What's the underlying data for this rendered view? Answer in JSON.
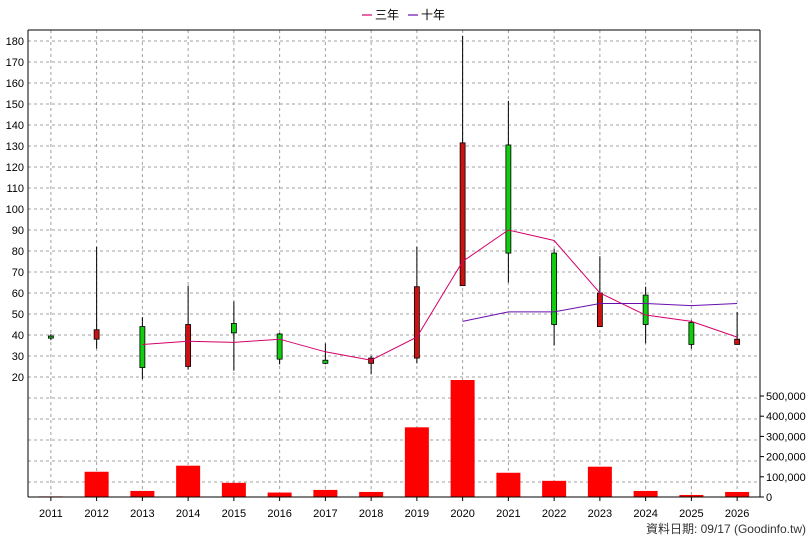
{
  "chart_data": {
    "type": "candlestick+line+bar",
    "legend": {
      "placement": "top-center",
      "items": [
        {
          "label": "三年",
          "color": "#d4006a"
        },
        {
          "label": "十年",
          "color": "#6a0dad"
        }
      ]
    },
    "years": [
      "2011",
      "2012",
      "2013",
      "2014",
      "2015",
      "2016",
      "2017",
      "2018",
      "2019",
      "2020",
      "2021",
      "2022",
      "2023",
      "2024",
      "2025",
      "2026"
    ],
    "price_axis": {
      "min": 20,
      "max": 180,
      "ticks": [
        20,
        30,
        40,
        50,
        60,
        70,
        80,
        90,
        100,
        110,
        120,
        130,
        140,
        150,
        160,
        170,
        180
      ]
    },
    "volume_axis": {
      "min": 0,
      "max": 550000,
      "ticks": [
        0,
        100000,
        200000,
        300000,
        400000,
        500000
      ],
      "tick_labels": [
        "0",
        "100,000",
        "200,000",
        "300,000",
        "400,000",
        "500,000"
      ]
    },
    "candles": [
      {
        "year": "2011",
        "open": 38.5,
        "high": 40.5,
        "low": 37.5,
        "close": 39.5
      },
      {
        "year": "2012",
        "open": 42.5,
        "high": 82,
        "low": 33.5,
        "close": 38
      },
      {
        "year": "2013",
        "open": 24.5,
        "high": 48.5,
        "low": 19,
        "close": 44
      },
      {
        "year": "2014",
        "open": 45,
        "high": 63.5,
        "low": 23.5,
        "close": 25
      },
      {
        "year": "2015",
        "open": 41,
        "high": 56,
        "low": 23,
        "close": 45.5
      },
      {
        "year": "2016",
        "open": 28.5,
        "high": 41,
        "low": 26,
        "close": 40.5
      },
      {
        "year": "2017",
        "open": 26.5,
        "high": 36,
        "low": 26,
        "close": 28
      },
      {
        "year": "2018",
        "open": 29,
        "high": 30,
        "low": 21.5,
        "close": 26.5
      },
      {
        "year": "2019",
        "open": 63,
        "high": 82,
        "low": 26.5,
        "close": 29
      },
      {
        "year": "2020",
        "open": 131.5,
        "high": 182.5,
        "low": 65,
        "close": 63.5
      },
      {
        "year": "2021",
        "open": 79,
        "high": 151.5,
        "low": 65,
        "close": 130.5
      },
      {
        "year": "2022",
        "open": 45,
        "high": 81,
        "low": 35,
        "close": 79
      },
      {
        "year": "2023",
        "open": 60,
        "high": 77.5,
        "low": 44,
        "close": 44
      },
      {
        "year": "2024",
        "open": 45,
        "high": 63,
        "low": 36,
        "close": 59
      },
      {
        "year": "2025",
        "open": 35.5,
        "high": 47,
        "low": 33.5,
        "close": 46
      },
      {
        "year": "2026",
        "open": 38,
        "high": 51,
        "low": 36,
        "close": 35.5
      }
    ],
    "volume": [
      {
        "year": "2011",
        "value": 3000
      },
      {
        "year": "2012",
        "value": 125000
      },
      {
        "year": "2013",
        "value": 30000
      },
      {
        "year": "2014",
        "value": 155000
      },
      {
        "year": "2015",
        "value": 70000
      },
      {
        "year": "2016",
        "value": 22000
      },
      {
        "year": "2017",
        "value": 35000
      },
      {
        "year": "2018",
        "value": 25000
      },
      {
        "year": "2019",
        "value": 345000
      },
      {
        "year": "2020",
        "value": 580000
      },
      {
        "year": "2021",
        "value": 120000
      },
      {
        "year": "2022",
        "value": 80000
      },
      {
        "year": "2023",
        "value": 150000
      },
      {
        "year": "2024",
        "value": 30000
      },
      {
        "year": "2025",
        "value": 10000
      },
      {
        "year": "2026",
        "value": 25000
      }
    ],
    "series": [
      {
        "name": "三年",
        "color": "#d4006a",
        "points": [
          {
            "year": "2013",
            "value": 35.5
          },
          {
            "year": "2014",
            "value": 37
          },
          {
            "year": "2015",
            "value": 36.5
          },
          {
            "year": "2016",
            "value": 38
          },
          {
            "year": "2017",
            "value": 32
          },
          {
            "year": "2018",
            "value": 28
          },
          {
            "year": "2019",
            "value": 39
          },
          {
            "year": "2020",
            "value": 75
          },
          {
            "year": "2021",
            "value": 90
          },
          {
            "year": "2022",
            "value": 85
          },
          {
            "year": "2023",
            "value": 60
          },
          {
            "year": "2024",
            "value": 49.5
          },
          {
            "year": "2025",
            "value": 46.5
          },
          {
            "year": "2026",
            "value": 39
          }
        ]
      },
      {
        "name": "十年",
        "color": "#6a0dad",
        "points": [
          {
            "year": "2020",
            "value": 46.5
          },
          {
            "year": "2021",
            "value": 51
          },
          {
            "year": "2022",
            "value": 51
          },
          {
            "year": "2023",
            "value": 55
          },
          {
            "year": "2024",
            "value": 55
          },
          {
            "year": "2025",
            "value": 54
          },
          {
            "year": "2026",
            "value": 55
          }
        ]
      }
    ],
    "colors": {
      "up": "#11cc11",
      "down": "#cc1111",
      "volume": "#ff0000",
      "grid": "#a0a0a0"
    },
    "grid": true
  },
  "footer": "資料日期: 09/17  (Goodinfo.tw)"
}
